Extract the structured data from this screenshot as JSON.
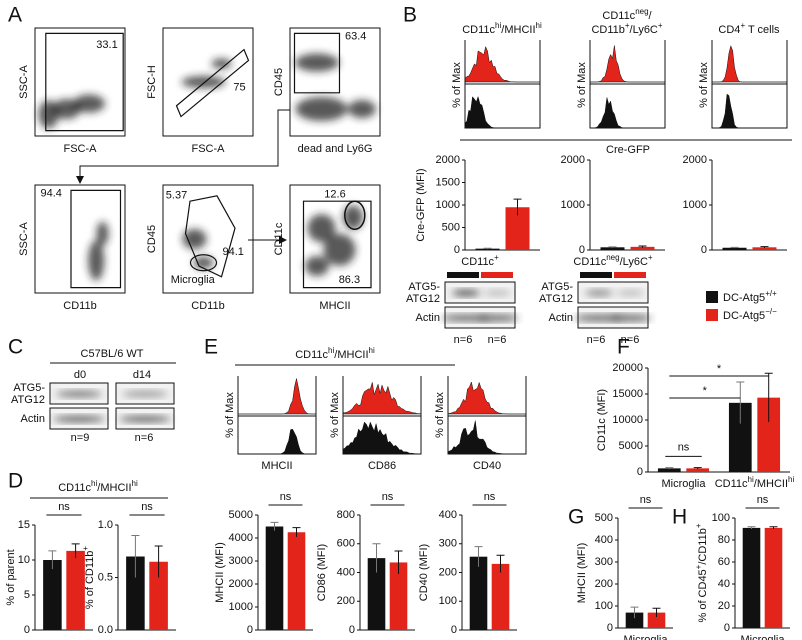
{
  "panel_letters": [
    "A",
    "B",
    "C",
    "D",
    "E",
    "F",
    "G",
    "H"
  ],
  "A": {
    "plots": [
      {
        "xlabel": "FSC-A",
        "ylabel": "SSC-A",
        "gates": [
          "33.1"
        ]
      },
      {
        "xlabel": "FSC-A",
        "ylabel": "FSC-H",
        "gates": [
          "75"
        ]
      },
      {
        "xlabel": "dead and Ly6G",
        "ylabel": "CD45",
        "gates": [
          "63.4"
        ]
      },
      {
        "xlabel": "CD11b",
        "ylabel": "SSC-A",
        "gates": [
          "94.4"
        ]
      },
      {
        "xlabel": "CD11b",
        "ylabel": "CD45",
        "gates": [
          "5.37",
          "94.1"
        ],
        "annotation": "Microglia"
      },
      {
        "xlabel": "MHCII",
        "ylabel": "CD11c",
        "gates": [
          "12.6",
          "86.3"
        ]
      }
    ]
  },
  "B": {
    "headers": [
      [
        [
          "CD11c",
          "hi",
          "/MHCII",
          "hi"
        ]
      ],
      [
        [
          "CD11c",
          "neg",
          "/"
        ],
        [
          "CD11b",
          "+",
          "/Ly6C",
          "+"
        ]
      ],
      [
        [
          "CD4",
          "+",
          " T cells"
        ]
      ]
    ],
    "hist_ylabel": "% of Max",
    "xlabel": "Cre-GFP",
    "charts": [
      {
        "ylabel": "Cre-GFP (MFI)",
        "ylim": [
          0,
          2000
        ],
        "yticks": [
          0,
          500,
          1000,
          1500,
          2000
        ],
        "groups": [
          {
            "values": [
              30,
              950
            ],
            "errors": [
              10,
              180
            ]
          }
        ]
      },
      {
        "ylim": [
          0,
          2000
        ],
        "yticks": [
          0,
          1000,
          2000
        ],
        "groups": [
          {
            "values": [
              60,
              70
            ],
            "errors": [
              10,
              20
            ]
          }
        ]
      },
      {
        "ylim": [
          0,
          2000
        ],
        "yticks": [
          0,
          1000,
          2000
        ],
        "groups": [
          {
            "values": [
              50,
              60
            ],
            "errors": [
              8,
              15
            ]
          }
        ]
      }
    ],
    "blots": [
      {
        "title": [
          "CD11c",
          "+"
        ],
        "rows": [
          [
            "ATG5-",
            "ATG12"
          ],
          [
            "Actin"
          ]
        ],
        "n": [
          "n=6",
          "n=6"
        ]
      },
      {
        "title": [
          "CD11c",
          "neg",
          "/Ly6C",
          "+"
        ],
        "rows": [
          [
            "ATG5-",
            "ATG12"
          ],
          [
            "Actin"
          ]
        ],
        "n": [
          "n=6",
          "n=6"
        ]
      }
    ]
  },
  "legend": [
    {
      "label": [
        "DC-Atg5",
        "+/+"
      ],
      "color": "#111111"
    },
    {
      "label": [
        "DC-Atg5",
        "−/−"
      ],
      "color": "#e3241b"
    }
  ],
  "C": {
    "title": "C57BL/6 WT",
    "lanes": [
      "d0",
      "d14"
    ],
    "rows": [
      [
        "ATG5-",
        "ATG12"
      ],
      [
        "Actin"
      ]
    ],
    "n": [
      "n=9",
      "n=6"
    ]
  },
  "D": {
    "title": [
      "CD11c",
      "hi",
      "/MHCII",
      "hi"
    ],
    "charts": [
      {
        "ylabel": "% of parent",
        "ylim": [
          0,
          15
        ],
        "yticks": [
          0,
          5,
          10,
          15
        ],
        "groups": [
          {
            "values": [
              10,
              11.3
            ],
            "errors": [
              1.3,
              1
            ]
          }
        ],
        "sig": [
          "ns"
        ]
      },
      {
        "ylabel": [
          "% of CD11b",
          "+"
        ],
        "ylim": [
          0,
          1
        ],
        "yticks": [
          {
            "value": 0,
            "label": "0.0"
          },
          {
            "value": 0.5,
            "label": "0.5"
          },
          {
            "value": 1,
            "label": "1.0"
          }
        ],
        "groups": [
          {
            "values": [
              0.7,
              0.65
            ],
            "errors": [
              0.2,
              0.15
            ]
          }
        ],
        "sig": [
          "ns"
        ]
      }
    ]
  },
  "E": {
    "title": [
      "CD11c",
      "hi",
      "/MHCII",
      "hi"
    ],
    "hist_ylabel": "% of Max",
    "hist_xlabels": [
      "MHCII",
      "CD86",
      "CD40"
    ],
    "charts": [
      {
        "ylabel": "MHCII (MFI)",
        "ylim": [
          0,
          5000
        ],
        "yticks": [
          0,
          1000,
          2000,
          3000,
          4000,
          5000
        ],
        "groups": [
          {
            "values": [
              4500,
              4250
            ],
            "errors": [
              180,
              200
            ]
          }
        ],
        "sig": [
          "ns"
        ]
      },
      {
        "ylabel": "CD86 (MFI)",
        "ylim": [
          0,
          800
        ],
        "yticks": [
          0,
          200,
          400,
          600,
          800
        ],
        "groups": [
          {
            "values": [
              500,
              470
            ],
            "errors": [
              100,
              80
            ]
          }
        ],
        "sig": [
          "ns"
        ]
      },
      {
        "ylabel": "CD40 (MFI)",
        "ylim": [
          0,
          400
        ],
        "yticks": [
          0,
          100,
          200,
          300,
          400
        ],
        "groups": [
          {
            "values": [
              255,
              230
            ],
            "errors": [
              35,
              30
            ]
          }
        ],
        "sig": [
          "ns"
        ]
      }
    ]
  },
  "F": {
    "chart": {
      "ylabel": "CD11c (MFI)",
      "ylim": [
        0,
        20000
      ],
      "yticks": [
        0,
        5000,
        10000,
        15000,
        20000
      ],
      "categories": [
        "Microglia",
        [
          "CD11c",
          "hi",
          "/MHCII",
          "hi"
        ]
      ],
      "groups": [
        {
          "values": [
            700,
            700
          ],
          "errors": [
            150,
            150
          ]
        },
        {
          "values": [
            13300,
            14300
          ],
          "errors": [
            4000,
            4700
          ]
        }
      ],
      "sig": [
        "ns",
        "*",
        "*"
      ]
    }
  },
  "G": {
    "chart": {
      "ylabel": "MHCII (MFI)",
      "ylim": [
        0,
        500
      ],
      "yticks": [
        0,
        100,
        200,
        300,
        400,
        500
      ],
      "categories": [
        "Microglia"
      ],
      "groups": [
        {
          "values": [
            70,
            70
          ],
          "errors": [
            25,
            20
          ]
        }
      ],
      "sig": [
        "ns"
      ]
    }
  },
  "H": {
    "chart": {
      "ylabel": [
        "% of CD45",
        "+",
        "/CD11b",
        "+"
      ],
      "ylim": [
        0,
        100
      ],
      "yticks": [
        0,
        20,
        40,
        60,
        80,
        100
      ],
      "categories": [
        "Microglia"
      ],
      "groups": [
        {
          "values": [
            91,
            91
          ],
          "errors": [
            1,
            1
          ]
        }
      ],
      "sig": [
        "ns"
      ]
    }
  }
}
